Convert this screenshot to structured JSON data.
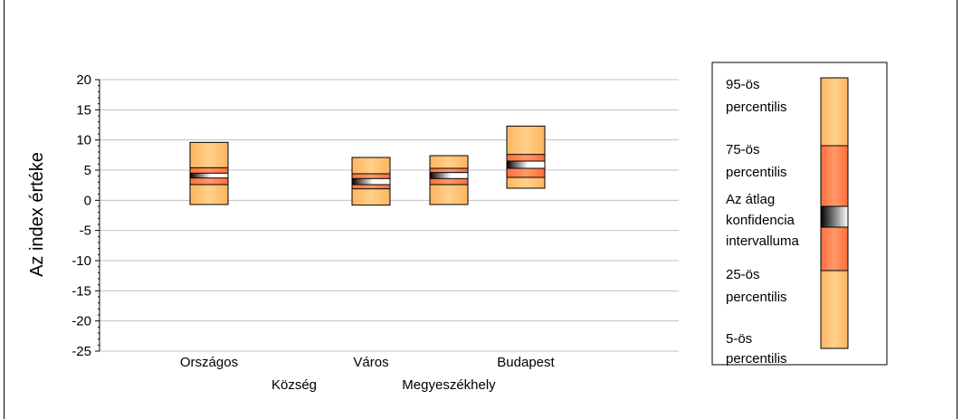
{
  "chart_data": {
    "type": "box-percentile",
    "ylabel": "Az index értéke",
    "ylim": [
      -25,
      20
    ],
    "yticks": [
      20,
      15,
      10,
      5,
      0,
      -5,
      -10,
      -15,
      -20,
      -25
    ],
    "grid": true,
    "categories": [
      "Országos",
      "Község",
      "Város",
      "Megyeszékhely",
      "Budapest"
    ],
    "series": [
      {
        "category": "Országos",
        "p5": -0.7,
        "p25": 2.6,
        "ci_low": 3.7,
        "ci_high": 4.5,
        "p75": 5.4,
        "p95": 9.6
      },
      {
        "category": "Község",
        "p5": null,
        "p25": null,
        "ci_low": null,
        "ci_high": null,
        "p75": null,
        "p95": null
      },
      {
        "category": "Város",
        "p5": -0.8,
        "p25": 1.9,
        "ci_low": 2.6,
        "ci_high": 3.6,
        "p75": 4.4,
        "p95": 7.1
      },
      {
        "category": "Megyeszékhely",
        "p5": -0.7,
        "p25": 2.6,
        "ci_low": 3.6,
        "ci_high": 4.6,
        "p75": 5.3,
        "p95": 7.4
      },
      {
        "category": "Budapest",
        "p5": 2.0,
        "p25": 3.8,
        "ci_low": 5.3,
        "ci_high": 6.5,
        "p75": 7.6,
        "p95": 12.3
      }
    ],
    "legend": {
      "position": "right",
      "entries": [
        {
          "text": [
            "95-ös",
            "percentilis"
          ]
        },
        {
          "text": [
            "75-ös",
            "percentilis"
          ]
        },
        {
          "text": [
            "Az átlag",
            "konfidencia",
            "intervalluma"
          ]
        },
        {
          "text": [
            "25-ös",
            "percentilis"
          ]
        },
        {
          "text": [
            "5-ös",
            "percentilis"
          ]
        }
      ]
    },
    "colors": {
      "outer": "#ffbf6e",
      "inner": "#ff7f4a",
      "ci_dark": "#000000",
      "ci_light": "#ffffff",
      "grid": "#c0c0c0"
    }
  }
}
